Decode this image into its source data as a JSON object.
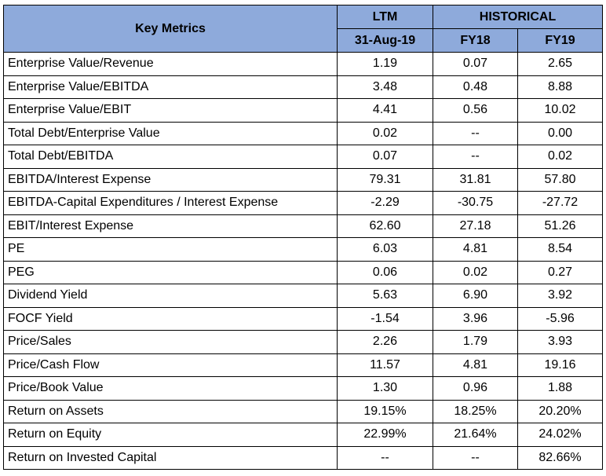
{
  "header": {
    "key_metrics": "Key Metrics",
    "ltm": "LTM",
    "historical": "HISTORICAL",
    "ltm_date": "31-Aug-19",
    "fy18": "FY18",
    "fy19": "FY19"
  },
  "rows": [
    {
      "label": "Enterprise Value/Revenue",
      "ltm": "1.19",
      "fy18": "0.07",
      "fy19": "2.65"
    },
    {
      "label": "Enterprise Value/EBITDA",
      "ltm": "3.48",
      "fy18": "0.48",
      "fy19": "8.88"
    },
    {
      "label": "Enterprise Value/EBIT",
      "ltm": "4.41",
      "fy18": "0.56",
      "fy19": "10.02"
    },
    {
      "label": "Total Debt/Enterprise Value",
      "ltm": "0.02",
      "fy18": "--",
      "fy19": "0.00"
    },
    {
      "label": "Total Debt/EBITDA",
      "ltm": "0.07",
      "fy18": "--",
      "fy19": "0.02"
    },
    {
      "label": "EBITDA/Interest Expense",
      "ltm": "79.31",
      "fy18": "31.81",
      "fy19": "57.80"
    },
    {
      "label": "EBITDA-Capital Expenditures / Interest Expense",
      "ltm": "-2.29",
      "fy18": "-30.75",
      "fy19": "-27.72"
    },
    {
      "label": "EBIT/Interest Expense",
      "ltm": "62.60",
      "fy18": "27.18",
      "fy19": "51.26"
    },
    {
      "label": "PE",
      "ltm": "6.03",
      "fy18": "4.81",
      "fy19": "8.54"
    },
    {
      "label": "PEG",
      "ltm": "0.06",
      "fy18": "0.02",
      "fy19": "0.27"
    },
    {
      "label": "Dividend Yield",
      "ltm": "5.63",
      "fy18": "6.90",
      "fy19": "3.92"
    },
    {
      "label": "FOCF Yield",
      "ltm": "-1.54",
      "fy18": "3.96",
      "fy19": "-5.96"
    },
    {
      "label": "Price/Sales",
      "ltm": "2.26",
      "fy18": "1.79",
      "fy19": "3.93"
    },
    {
      "label": "Price/Cash Flow",
      "ltm": "11.57",
      "fy18": "4.81",
      "fy19": "19.16"
    },
    {
      "label": "Price/Book Value",
      "ltm": "1.30",
      "fy18": "0.96",
      "fy19": "1.88"
    },
    {
      "label": "Return on Assets",
      "ltm": "19.15%",
      "fy18": "18.25%",
      "fy19": "20.20%"
    },
    {
      "label": "Return on Equity",
      "ltm": "22.99%",
      "fy18": "21.64%",
      "fy19": "24.02%"
    },
    {
      "label": "Return on Invested Capital",
      "ltm": "--",
      "fy18": "--",
      "fy19": "82.66%"
    }
  ],
  "colors": {
    "header_fill": "#8eaadb",
    "border": "#000000"
  }
}
